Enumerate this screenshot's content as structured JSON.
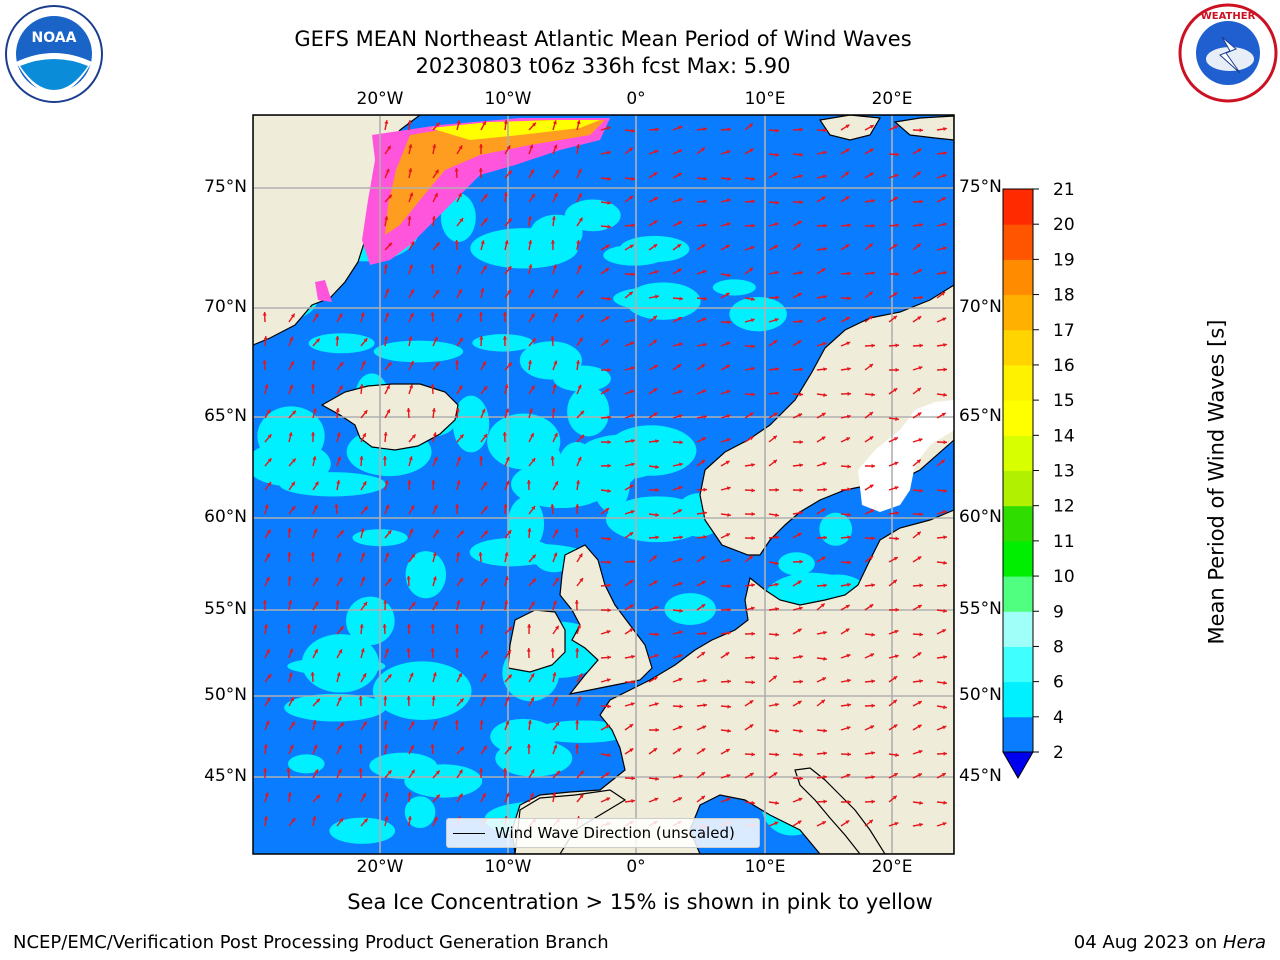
{
  "title": {
    "line1": "GEFS MEAN Northeast Atlantic Mean Period of Wind Waves",
    "line2": "20230803 t06z 336h fcst   Max: 5.90"
  },
  "map": {
    "lon_ticks": [
      "20°W",
      "10°W",
      "0°",
      "10°E",
      "20°E"
    ],
    "lat_ticks": [
      "75°N",
      "70°N",
      "65°N",
      "60°N",
      "55°N",
      "50°N",
      "45°N"
    ],
    "ocean_color": "#0a7cff",
    "land_color": "#efedda",
    "arrow_color": "#e8141a"
  },
  "legend": {
    "label": "Wind Wave Direction (unscaled)"
  },
  "colorbar": {
    "label": "Mean Period of Wind Waves [s]",
    "ticks": [
      "2",
      "4",
      "6",
      "8",
      "9",
      "10",
      "11",
      "12",
      "13",
      "14",
      "15",
      "16",
      "17",
      "18",
      "19",
      "20",
      "21"
    ],
    "colors": [
      "#0a7cff",
      "#00f0ff",
      "#40ffff",
      "#a0fff8",
      "#50ff80",
      "#00ee00",
      "#30dd00",
      "#b0f000",
      "#d8ff00",
      "#ffff00",
      "#fff200",
      "#ffd400",
      "#ffb000",
      "#ff8c00",
      "#ff5500",
      "#ff2a00",
      "#ff0000"
    ],
    "extend_color": "#0000f0"
  },
  "bottom_note": "Sea Ice Concentration > 15% is shown in pink to yellow",
  "footer": {
    "left": "NCEP/EMC/Verification Post Processing Product Generation Branch",
    "date": "04 Aug 2023 on ",
    "host": "Hera"
  },
  "logos": {
    "left": "NOAA",
    "right": "NATIONAL WEATHER SERVICE"
  }
}
